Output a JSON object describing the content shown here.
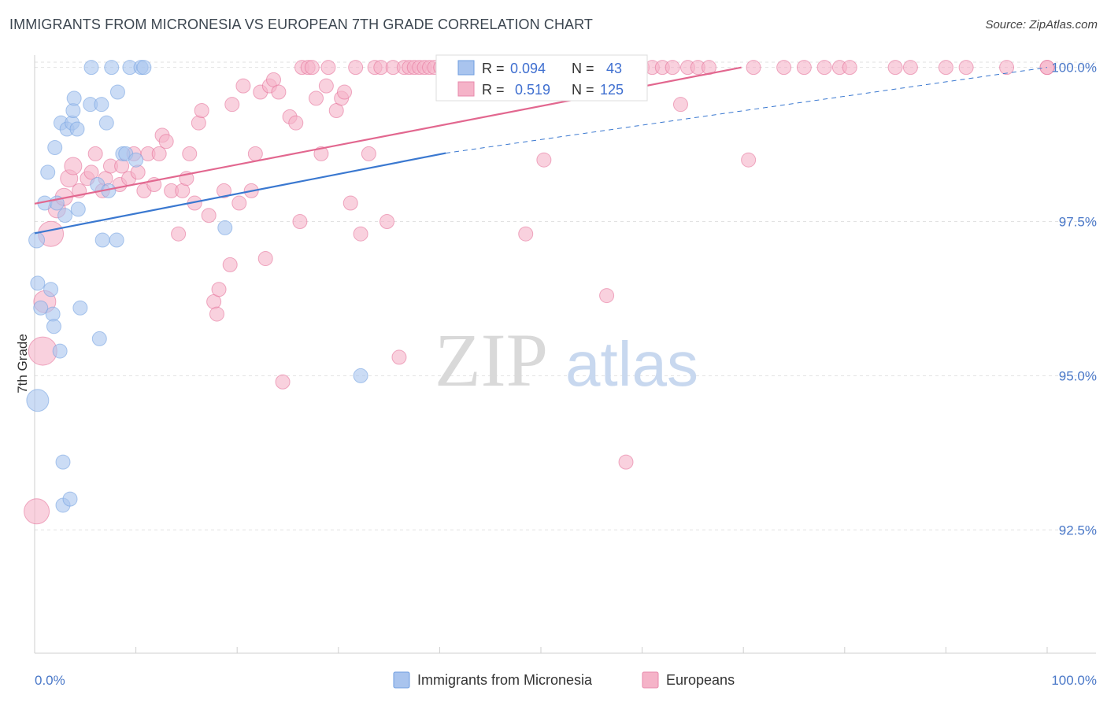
{
  "header": {
    "title": "IMMIGRANTS FROM MICRONESIA VS EUROPEAN 7TH GRADE CORRELATION CHART",
    "source": "Source: ZipAtlas.com"
  },
  "watermark": {
    "zip": "ZIP",
    "atlas": "atlas"
  },
  "legend_stats": {
    "rows": [
      {
        "r_label": "R =",
        "r_value": "0.094",
        "n_label": "N =",
        "n_value": "43",
        "color": "#a9c4ee"
      },
      {
        "r_label": "R =",
        "r_value": "0.519",
        "n_label": "N =",
        "n_value": "125",
        "color": "#f5b3c8"
      }
    ]
  },
  "bottom_legend": {
    "items": [
      {
        "label": "Immigrants from Micronesia",
        "color": "#a9c4ee"
      },
      {
        "label": "Europeans",
        "color": "#f5b3c8"
      }
    ]
  },
  "chart_data": {
    "type": "scatter",
    "title": "IMMIGRANTS FROM MICRONESIA VS EUROPEAN 7TH GRADE CORRELATION CHART",
    "xlabel": "",
    "ylabel": "7th Grade",
    "xlim": [
      0,
      100
    ],
    "ylim": [
      90.5,
      100.2
    ],
    "x_tick_labels": [
      "0.0%",
      "100.0%"
    ],
    "y_ticks": [
      92.5,
      95.0,
      97.5,
      100.0
    ],
    "y_tick_labels": [
      "92.5%",
      "95.0%",
      "97.5%",
      "100.0%"
    ],
    "grid": true,
    "legend": "top-center",
    "series": [
      {
        "name": "Immigrants from Micronesia",
        "color": "#6f9ee0",
        "fill": "#a9c4ee",
        "points": [
          [
            0.2,
            97.2,
            10
          ],
          [
            0.3,
            94.6,
            14
          ],
          [
            0.3,
            96.5,
            9
          ],
          [
            0.6,
            96.1,
            9
          ],
          [
            1.0,
            97.8,
            9
          ],
          [
            1.3,
            98.3,
            9
          ],
          [
            1.6,
            96.4,
            9
          ],
          [
            1.8,
            96.0,
            9
          ],
          [
            1.9,
            95.8,
            9
          ],
          [
            2.0,
            98.7,
            9
          ],
          [
            2.2,
            97.8,
            9
          ],
          [
            2.5,
            95.4,
            9
          ],
          [
            2.6,
            99.1,
            9
          ],
          [
            2.8,
            93.6,
            9
          ],
          [
            2.8,
            92.9,
            9
          ],
          [
            3.0,
            97.6,
            9
          ],
          [
            3.2,
            99.0,
            9
          ],
          [
            3.5,
            93.0,
            9
          ],
          [
            3.7,
            99.1,
            9
          ],
          [
            3.8,
            99.3,
            9
          ],
          [
            3.9,
            99.5,
            9
          ],
          [
            4.2,
            99.0,
            9
          ],
          [
            4.3,
            97.7,
            9
          ],
          [
            4.5,
            96.1,
            9
          ],
          [
            5.5,
            99.4,
            9
          ],
          [
            5.6,
            100.0,
            9
          ],
          [
            6.2,
            98.1,
            9
          ],
          [
            6.4,
            95.6,
            9
          ],
          [
            6.6,
            99.4,
            9
          ],
          [
            6.7,
            97.2,
            9
          ],
          [
            7.1,
            99.1,
            9
          ],
          [
            7.3,
            98.0,
            9
          ],
          [
            7.6,
            100.0,
            9
          ],
          [
            8.1,
            97.2,
            9
          ],
          [
            8.2,
            99.6,
            9
          ],
          [
            8.7,
            98.6,
            9
          ],
          [
            9.0,
            98.6,
            9
          ],
          [
            9.4,
            100.0,
            9
          ],
          [
            10.0,
            98.5,
            9
          ],
          [
            10.5,
            100.0,
            9
          ],
          [
            10.8,
            100.0,
            9
          ],
          [
            18.8,
            97.4,
            9
          ],
          [
            32.2,
            95.0,
            9
          ]
        ],
        "trend": {
          "x": [
            0,
            40.6
          ],
          "y": [
            97.31,
            98.61
          ],
          "extended_to": [
            100,
            100.0
          ]
        }
      },
      {
        "name": "Europeans",
        "color": "#e46c95",
        "fill": "#f5b3c8",
        "points": [
          [
            0.2,
            92.8,
            16
          ],
          [
            0.8,
            95.4,
            18
          ],
          [
            1.0,
            96.2,
            14
          ],
          [
            1.6,
            97.3,
            16
          ],
          [
            2.2,
            97.7,
            11
          ],
          [
            2.9,
            97.9,
            11
          ],
          [
            3.4,
            98.2,
            11
          ],
          [
            3.8,
            98.4,
            11
          ],
          [
            4.4,
            98.0,
            9
          ],
          [
            5.2,
            98.2,
            9
          ],
          [
            5.6,
            98.3,
            9
          ],
          [
            6.0,
            98.6,
            9
          ],
          [
            6.7,
            98.0,
            9
          ],
          [
            7.0,
            98.2,
            9
          ],
          [
            7.5,
            98.4,
            9
          ],
          [
            8.4,
            98.1,
            9
          ],
          [
            8.6,
            98.4,
            9
          ],
          [
            9.3,
            98.2,
            9
          ],
          [
            9.8,
            98.6,
            9
          ],
          [
            10.2,
            98.3,
            9
          ],
          [
            10.8,
            98.0,
            9
          ],
          [
            11.2,
            98.6,
            9
          ],
          [
            11.8,
            98.1,
            9
          ],
          [
            12.3,
            98.6,
            9
          ],
          [
            12.6,
            98.9,
            9
          ],
          [
            13.0,
            98.8,
            9
          ],
          [
            13.5,
            98.0,
            9
          ],
          [
            14.2,
            97.3,
            9
          ],
          [
            14.6,
            98.0,
            9
          ],
          [
            15.0,
            98.2,
            9
          ],
          [
            15.3,
            98.6,
            9
          ],
          [
            15.8,
            97.8,
            9
          ],
          [
            16.2,
            99.1,
            9
          ],
          [
            16.5,
            99.3,
            9
          ],
          [
            17.2,
            97.6,
            9
          ],
          [
            17.7,
            96.2,
            9
          ],
          [
            18.0,
            96.0,
            9
          ],
          [
            18.2,
            96.4,
            9
          ],
          [
            18.7,
            98.0,
            9
          ],
          [
            19.3,
            96.8,
            9
          ],
          [
            19.5,
            99.4,
            9
          ],
          [
            20.2,
            97.8,
            9
          ],
          [
            20.6,
            99.7,
            9
          ],
          [
            21.4,
            98.0,
            9
          ],
          [
            21.8,
            98.6,
            9
          ],
          [
            22.3,
            99.6,
            9
          ],
          [
            22.8,
            96.9,
            9
          ],
          [
            23.2,
            99.7,
            9
          ],
          [
            23.6,
            99.8,
            9
          ],
          [
            24.1,
            99.6,
            9
          ],
          [
            24.5,
            94.9,
            9
          ],
          [
            25.2,
            99.2,
            9
          ],
          [
            25.8,
            99.1,
            9
          ],
          [
            26.2,
            97.5,
            9
          ],
          [
            26.4,
            100.0,
            9
          ],
          [
            27.0,
            100.0,
            9
          ],
          [
            27.4,
            100.0,
            9
          ],
          [
            27.8,
            99.5,
            9
          ],
          [
            28.3,
            98.6,
            9
          ],
          [
            28.8,
            99.7,
            9
          ],
          [
            29.0,
            100.0,
            9
          ],
          [
            29.8,
            99.3,
            9
          ],
          [
            30.3,
            99.5,
            9
          ],
          [
            30.6,
            99.6,
            9
          ],
          [
            31.2,
            97.8,
            9
          ],
          [
            31.7,
            100.0,
            9
          ],
          [
            32.2,
            97.3,
            9
          ],
          [
            33.0,
            98.6,
            9
          ],
          [
            33.6,
            100.0,
            9
          ],
          [
            34.2,
            100.0,
            9
          ],
          [
            34.8,
            97.5,
            9
          ],
          [
            35.4,
            100.0,
            9
          ],
          [
            36.0,
            95.3,
            9
          ],
          [
            36.5,
            100.0,
            9
          ],
          [
            37.0,
            100.0,
            9
          ],
          [
            37.5,
            100.0,
            9
          ],
          [
            38.0,
            100.0,
            9
          ],
          [
            38.5,
            100.0,
            9
          ],
          [
            39.0,
            100.0,
            9
          ],
          [
            39.5,
            100.0,
            9
          ],
          [
            40.1,
            100.0,
            9
          ],
          [
            41.0,
            100.0,
            9
          ],
          [
            42.0,
            100.0,
            9
          ],
          [
            43.0,
            100.0,
            9
          ],
          [
            44.0,
            100.0,
            9
          ],
          [
            45.0,
            100.0,
            9
          ],
          [
            46.0,
            100.0,
            9
          ],
          [
            47.0,
            100.0,
            9
          ],
          [
            47.8,
            100.0,
            9
          ],
          [
            48.5,
            97.3,
            9
          ],
          [
            49.5,
            100.0,
            9
          ],
          [
            50.3,
            98.5,
            9
          ],
          [
            51.0,
            100.0,
            9
          ],
          [
            52.0,
            100.0,
            9
          ],
          [
            53.0,
            100.0,
            9
          ],
          [
            54.0,
            100.0,
            9
          ],
          [
            55.0,
            100.0,
            9
          ],
          [
            56.0,
            100.0,
            9
          ],
          [
            56.5,
            96.3,
            9
          ],
          [
            57.0,
            100.0,
            9
          ],
          [
            58.0,
            100.0,
            9
          ],
          [
            58.4,
            93.6,
            9
          ],
          [
            59.0,
            100.0,
            9
          ],
          [
            60.0,
            100.0,
            9
          ],
          [
            61.0,
            100.0,
            9
          ],
          [
            62.0,
            100.0,
            9
          ],
          [
            63.0,
            100.0,
            9
          ],
          [
            63.8,
            99.4,
            9
          ],
          [
            64.5,
            100.0,
            9
          ],
          [
            65.5,
            100.0,
            9
          ],
          [
            66.6,
            100.0,
            9
          ],
          [
            70.5,
            98.5,
            9
          ],
          [
            71.0,
            100.0,
            9
          ],
          [
            74.0,
            100.0,
            9
          ],
          [
            76.0,
            100.0,
            9
          ],
          [
            78.0,
            100.0,
            9
          ],
          [
            79.5,
            100.0,
            9
          ],
          [
            80.5,
            100.0,
            9
          ],
          [
            85.0,
            100.0,
            9
          ],
          [
            86.5,
            100.0,
            9
          ],
          [
            90.0,
            100.0,
            9
          ],
          [
            92.0,
            100.0,
            9
          ],
          [
            96.0,
            100.0,
            9
          ],
          [
            100.0,
            100.0,
            9
          ],
          [
            100.0,
            100.0,
            9
          ]
        ],
        "trend": {
          "x": [
            0,
            69.8
          ],
          "y": [
            97.79,
            100.0
          ]
        }
      }
    ]
  }
}
